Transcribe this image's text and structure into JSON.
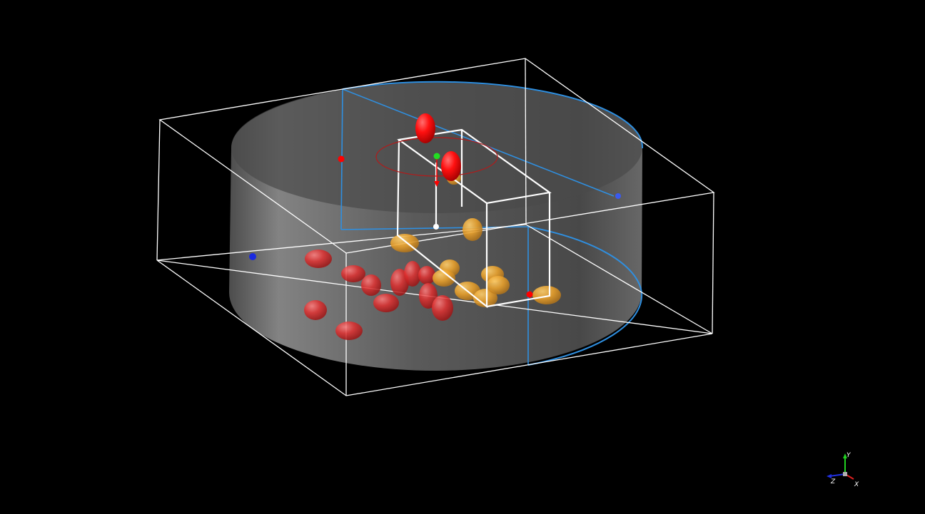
{
  "scene": {
    "background": "#000000",
    "colors": {
      "bounding_box": "#ffffff",
      "cylinder_fill": "#8a8a8a",
      "cylinder_edge": "#2f8fe0",
      "selection_box": "#ffffff",
      "selected_particle": "#ff1010",
      "red_particle": "#e32626",
      "orange_particle": "#f0a82c",
      "handle_blue": "#1a2ae0",
      "handle_red": "#ff0000",
      "handle_green": "#22dd22",
      "rotation_ring": "#b31a1a"
    },
    "particle_groups": [
      {
        "name": "red-particles",
        "color_key": "red_particle",
        "count": 14
      },
      {
        "name": "orange-particles",
        "color_key": "orange_particle",
        "count": 11
      },
      {
        "name": "selected-particles",
        "color_key": "selected_particle",
        "count": 2
      }
    ]
  },
  "axes": {
    "x": {
      "label": "X",
      "color": "#e02020"
    },
    "y": {
      "label": "Y",
      "color": "#20d020"
    },
    "z": {
      "label": "Z",
      "color": "#2030e0"
    }
  }
}
